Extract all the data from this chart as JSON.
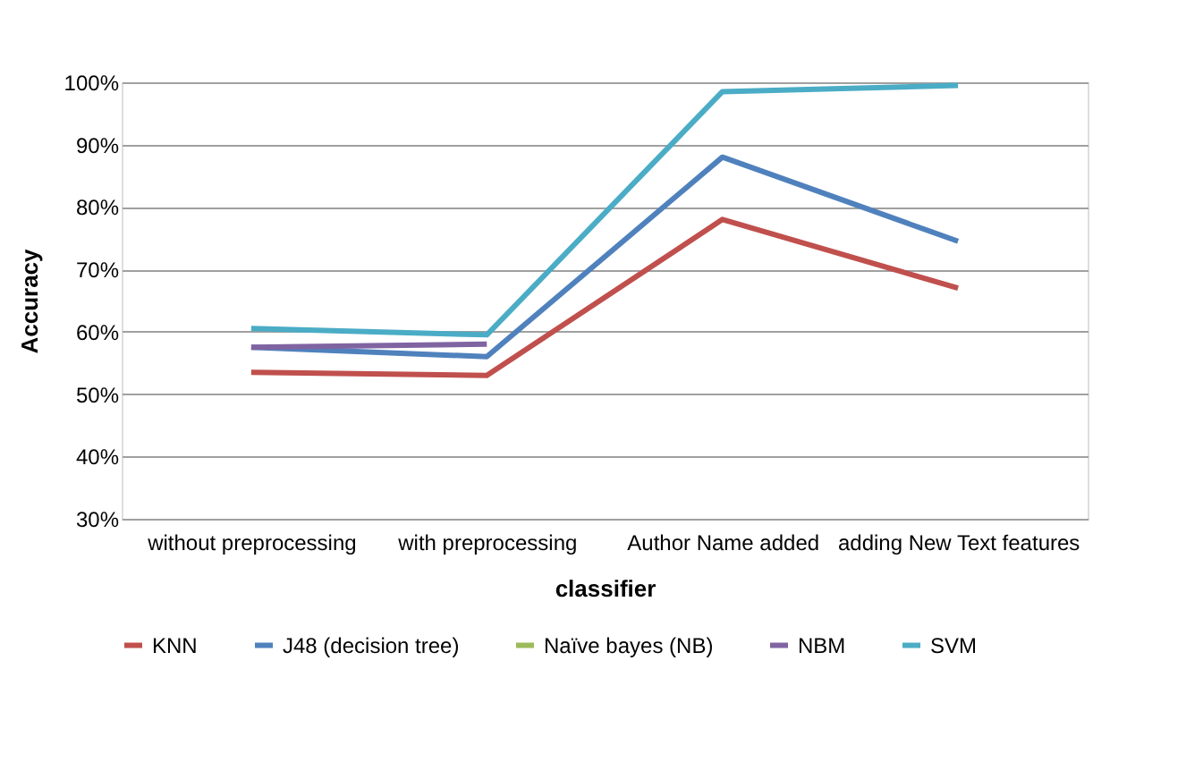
{
  "chart_data": {
    "type": "line",
    "xlabel": "classifier",
    "ylabel": "Accuracy",
    "categories": [
      "without preprocessing",
      "with preprocessing",
      "Author Name added",
      "adding New Text features"
    ],
    "series": [
      {
        "name": "KNN",
        "color": "#c0504d",
        "values": [
          53.5,
          53,
          78,
          67
        ]
      },
      {
        "name": "J48 (decision tree)",
        "color": "#4f81bd",
        "values": [
          57.5,
          56,
          88,
          74.5
        ]
      },
      {
        "name": "Naïve bayes (NB)",
        "color": "#9bbb59",
        "values": [
          null,
          null,
          null,
          null
        ]
      },
      {
        "name": "NBM",
        "color": "#8064a2",
        "values": [
          57.5,
          58,
          null,
          null
        ]
      },
      {
        "name": "SVM",
        "color": "#4bacc6",
        "values": [
          60.5,
          59.5,
          98.5,
          99.5
        ]
      }
    ],
    "ylim": [
      30,
      100
    ],
    "yticks": [
      {
        "value": 30,
        "label": "30%"
      },
      {
        "value": 40,
        "label": "40%"
      },
      {
        "value": 50,
        "label": "50%"
      },
      {
        "value": 60,
        "label": "60%"
      },
      {
        "value": 70,
        "label": "70%"
      },
      {
        "value": 80,
        "label": "80%"
      },
      {
        "value": 90,
        "label": "90%"
      },
      {
        "value": 100,
        "label": "100%"
      }
    ],
    "grid": "y",
    "legend": "bottom",
    "marker": "none",
    "line_style": "solid"
  }
}
